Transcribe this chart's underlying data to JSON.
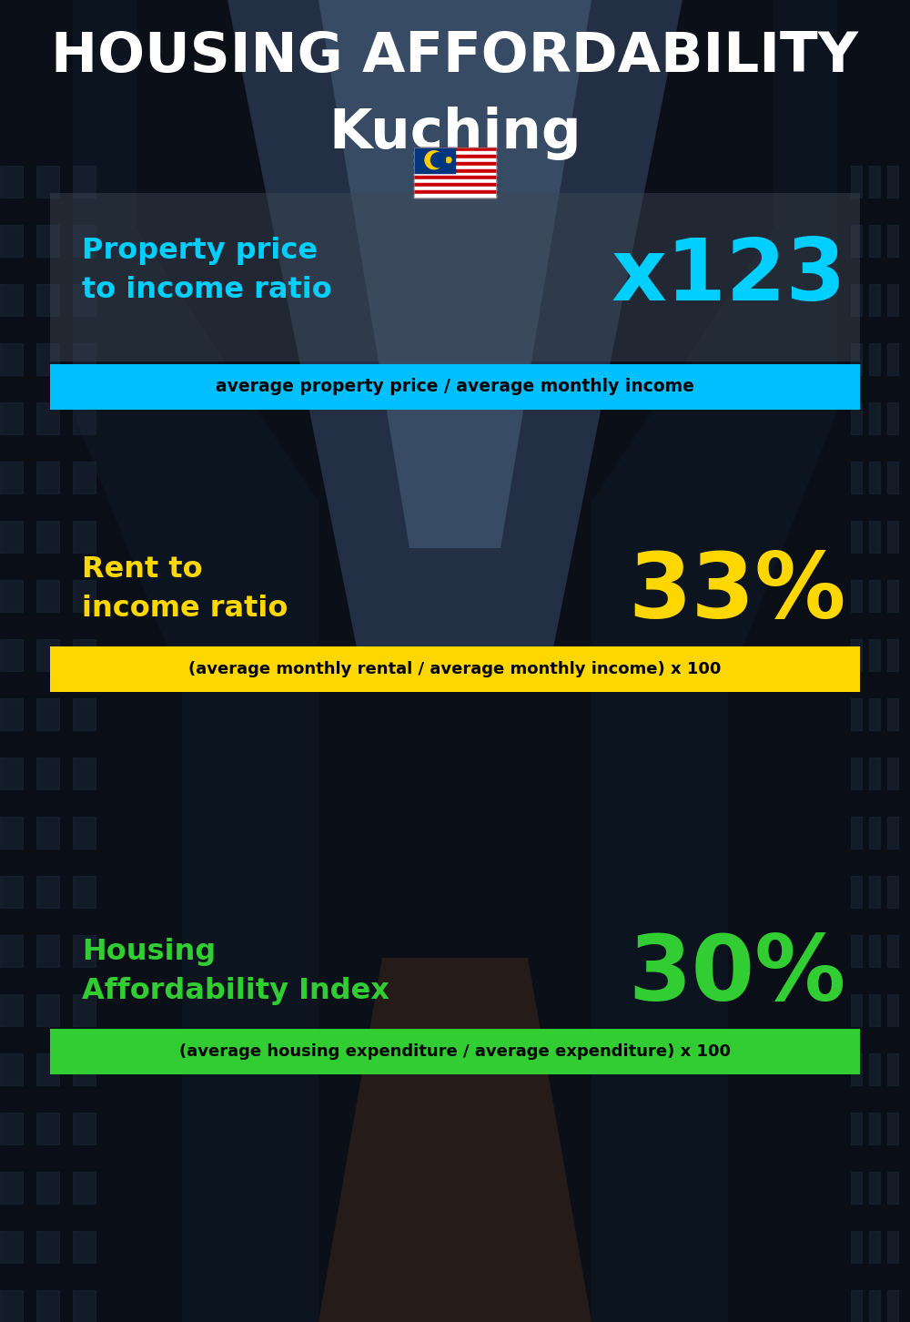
{
  "title_line1": "HOUSING AFFORDABILITY",
  "title_line2": "Kuching",
  "flag_text": "🇲🇾",
  "section1_label": "Property price\nto income ratio",
  "section1_value": "x123",
  "section1_label_color": "#00CFFF",
  "section1_value_color": "#00CFFF",
  "section1_subtext": "average property price / average monthly income",
  "section1_subtext_bg": "#00BFFF",
  "section2_label": "Rent to\nincome ratio",
  "section2_value": "33%",
  "section2_label_color": "#FFD700",
  "section2_value_color": "#FFD700",
  "section2_subtext": "(average monthly rental / average monthly income) x 100",
  "section2_subtext_bg": "#FFD700",
  "section3_label": "Housing\nAffordability Index",
  "section3_value": "30%",
  "section3_label_color": "#32CD32",
  "section3_value_color": "#32CD32",
  "section3_subtext": "(average housing expenditure / average expenditure) x 100",
  "section3_subtext_bg": "#32CD32",
  "bg_dark": "#0a0f18",
  "title_color": "#FFFFFF",
  "subtitle_color": "#FFFFFF"
}
